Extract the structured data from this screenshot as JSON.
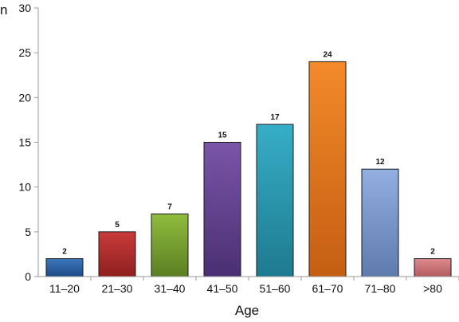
{
  "chart_data": {
    "type": "bar",
    "title": "",
    "xlabel": "Age",
    "ylabel": "n",
    "categories": [
      "11–20",
      "21–30",
      "31–40",
      "41–50",
      "51–60",
      "61–70",
      "71–80",
      ">80"
    ],
    "values": [
      2,
      5,
      7,
      15,
      17,
      24,
      12,
      2
    ],
    "ylim": [
      0,
      30
    ],
    "yticks": [
      0,
      5,
      10,
      15,
      20,
      25,
      30
    ],
    "grid": false,
    "legend": "none",
    "data_labels": true,
    "bar_colors": [
      [
        "#3c78bd",
        "#1d4a85"
      ],
      [
        "#c93b3a",
        "#8e1f1e"
      ],
      [
        "#8fbd3e",
        "#5a7f22"
      ],
      [
        "#7a55a8",
        "#4a2f72"
      ],
      [
        "#36aec7",
        "#1e7a8f"
      ],
      [
        "#f38a2a",
        "#c45e12"
      ],
      [
        "#93aee0",
        "#5f7aae"
      ],
      [
        "#dd8b8d",
        "#b35a5e"
      ]
    ]
  }
}
